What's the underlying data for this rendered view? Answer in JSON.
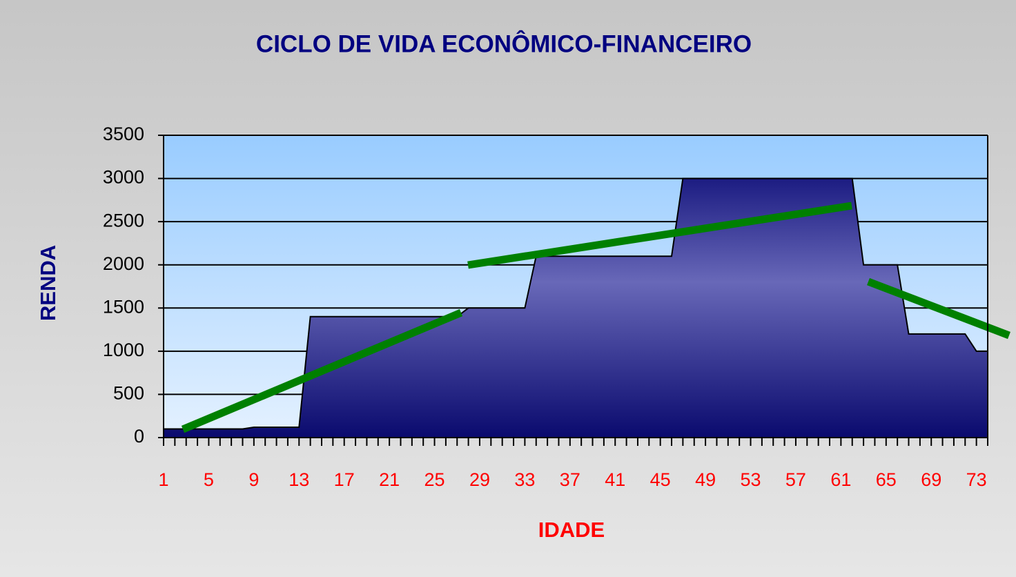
{
  "chart_data": {
    "type": "area",
    "title": "CICLO DE VIDA ECONÔMICO-FINANCEIRO",
    "x_label": "IDADE",
    "y_label": "RENDA",
    "categories": [
      "1",
      null,
      null,
      null,
      "5",
      null,
      null,
      null,
      "9",
      null,
      null,
      null,
      "13",
      null,
      null,
      null,
      "17",
      null,
      null,
      null,
      "21",
      null,
      null,
      null,
      "25",
      null,
      null,
      null,
      "29",
      null,
      null,
      null,
      "33",
      null,
      null,
      null,
      "37",
      null,
      null,
      null,
      "41",
      null,
      null,
      null,
      "45",
      null,
      null,
      null,
      "49",
      null,
      null,
      null,
      "53",
      null,
      null,
      null,
      "57",
      null,
      null,
      null,
      "61",
      null,
      null,
      null,
      "65",
      null,
      null,
      null,
      "69",
      null,
      null,
      null,
      "73",
      null
    ],
    "values": [
      100,
      100,
      100,
      100,
      100,
      100,
      100,
      100,
      120,
      120,
      120,
      120,
      120,
      1400,
      1400,
      1400,
      1400,
      1400,
      1400,
      1400,
      1400,
      1400,
      1400,
      1400,
      1400,
      1400,
      1400,
      1500,
      1500,
      1500,
      1500,
      1500,
      1500,
      2100,
      2100,
      2100,
      2100,
      2100,
      2100,
      2100,
      2100,
      2100,
      2100,
      2100,
      2100,
      2100,
      3000,
      3000,
      3000,
      3000,
      3000,
      3000,
      3000,
      3000,
      3000,
      3000,
      3000,
      3000,
      3000,
      3000,
      3000,
      3000,
      2000,
      2000,
      2000,
      2000,
      1200,
      1200,
      1200,
      1200,
      1200,
      1200,
      1000,
      1000
    ],
    "ylim": [
      0,
      3500
    ],
    "yticks": [
      0,
      500,
      1000,
      1500,
      2000,
      2500,
      3000,
      3500
    ],
    "grid": true
  }
}
